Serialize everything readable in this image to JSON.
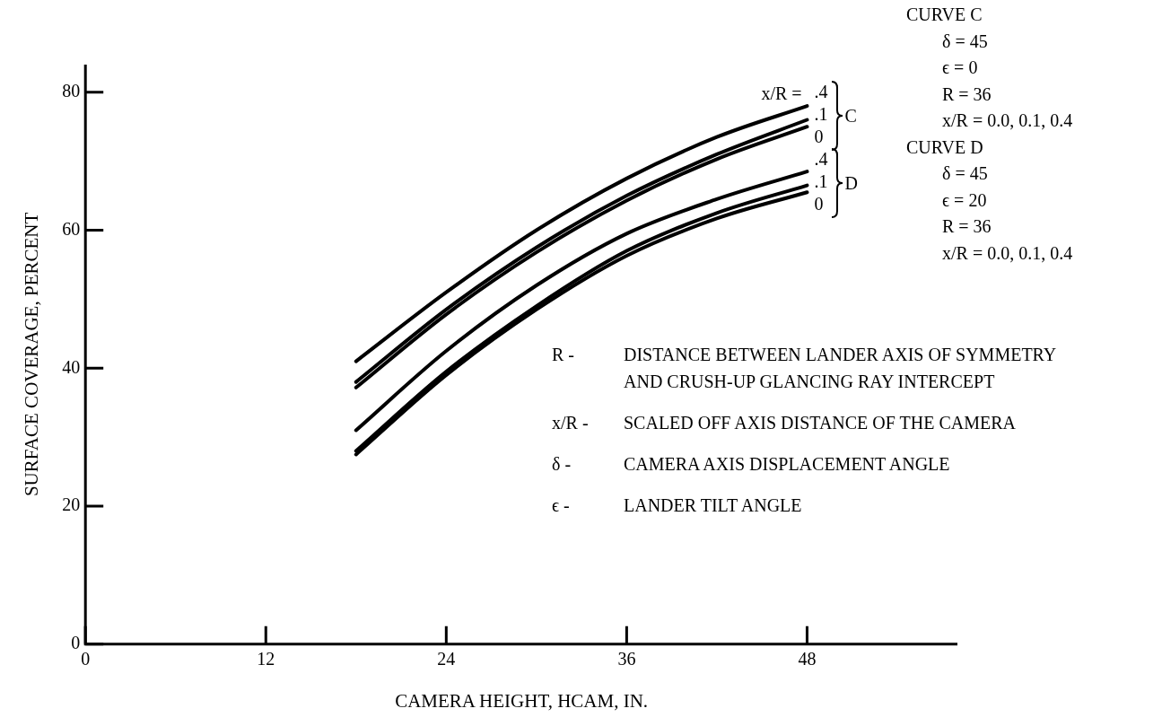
{
  "chart_data": {
    "type": "line",
    "xlabel": "CAMERA HEIGHT, HCAM, IN.",
    "ylabel": "SURFACE COVERAGE, PERCENT",
    "x": [
      18,
      24,
      30,
      36,
      42,
      48
    ],
    "series": [
      {
        "name": ".4",
        "color": "#000000",
        "values": [
          41,
          51,
          60,
          67.5,
          73.5,
          78
        ]
      },
      {
        "name": ".1",
        "color": "#000000",
        "values": [
          38,
          48.5,
          57.5,
          65,
          71,
          76
        ]
      },
      {
        "name": "0",
        "color": "#000000",
        "values": [
          37.2,
          47.8,
          56.8,
          64.3,
          70.3,
          75
        ]
      },
      {
        "name": ".4",
        "color": "#000000",
        "values": [
          31,
          42.5,
          52,
          59.5,
          64.5,
          68.5
        ]
      },
      {
        "name": ".1",
        "color": "#000000",
        "values": [
          28,
          39.5,
          49,
          57,
          62.5,
          66.5
        ]
      },
      {
        "name": "0",
        "color": "#000000",
        "values": [
          27.5,
          39,
          48.5,
          56.3,
          61.7,
          65.5
        ]
      }
    ],
    "xlim": [
      0,
      58
    ],
    "xticks": [
      0,
      12,
      24,
      36,
      48
    ],
    "ylim": [
      0,
      84
    ],
    "yticks": [
      0,
      20,
      40,
      60,
      80
    ],
    "grid": false,
    "legend": false,
    "marker": "none",
    "line_style": "solid",
    "annotations": [
      "x/R =",
      "C",
      "D",
      "CURVE C",
      "δ = 45",
      "ϵ = 0",
      "R = 36",
      "x/R = 0.0, 0.1, 0.4",
      "CURVE D",
      "δ = 45",
      "ϵ = 20",
      "R = 36",
      "x/R = 0.0, 0.1, 0.4",
      "R - DISTANCE BETWEEN LANDER AXIS OF SYMMETRY AND CRUSH-UP GLANCING RAY INTERCEPT",
      "x/R - SCALED OFF AXIS DISTANCE OF THE CAMERA",
      "δ - CAMERA AXIS DISPLACEMENT ANGLE",
      "ϵ - LANDER TILT ANGLE"
    ]
  }
}
